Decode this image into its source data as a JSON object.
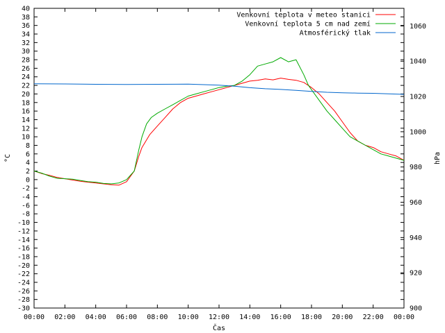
{
  "chart_data": {
    "type": "line",
    "xlabel": "Čas",
    "ylabel": "°C",
    "y2label": "hPa",
    "xlim": [
      0,
      24
    ],
    "ylim": [
      -30,
      40
    ],
    "y2lim": [
      900,
      1070
    ],
    "x_ticks": [
      "00:00",
      "02:00",
      "04:00",
      "06:00",
      "08:00",
      "10:00",
      "12:00",
      "14:00",
      "16:00",
      "18:00",
      "20:00",
      "22:00",
      "00:00"
    ],
    "y_ticks": [
      40,
      38,
      36,
      34,
      32,
      30,
      28,
      26,
      24,
      22,
      20,
      18,
      16,
      14,
      12,
      10,
      8,
      6,
      4,
      2,
      0,
      -2,
      -4,
      -6,
      -8,
      -10,
      -12,
      -14,
      -16,
      -18,
      -20,
      -22,
      -24,
      -26,
      -28,
      -30
    ],
    "y2_ticks": [
      1060,
      1040,
      1020,
      1000,
      980,
      960,
      940,
      920,
      900
    ],
    "legend_position": "top-right",
    "grid": false,
    "series": [
      {
        "name": "Venkovní teplota v meteo stanici",
        "color": "#ff0000",
        "axis": "left",
        "x": [
          0,
          0.5,
          1,
          1.5,
          2,
          2.5,
          3,
          3.5,
          4,
          4.5,
          5,
          5.5,
          6,
          6.5,
          6.8,
          7,
          7.5,
          8,
          8.5,
          9,
          9.5,
          10,
          10.5,
          11,
          11.5,
          12,
          12.5,
          13,
          13.5,
          14,
          14.5,
          15,
          15.5,
          16,
          16.5,
          17,
          17.5,
          18,
          18.5,
          19,
          19.5,
          20,
          20.5,
          21,
          21.5,
          22,
          22.5,
          23,
          23.5,
          24
        ],
        "values": [
          2,
          1.4,
          1,
          0.5,
          0.2,
          -0.1,
          -0.4,
          -0.6,
          -0.8,
          -1,
          -1.2,
          -1.3,
          -0.5,
          2,
          5.5,
          7.5,
          10.5,
          12.5,
          14.5,
          16.5,
          18,
          19,
          19.5,
          20,
          20.5,
          21,
          21.5,
          22,
          22.5,
          23,
          23.2,
          23.5,
          23.3,
          23.7,
          23.4,
          23.2,
          22.7,
          21.5,
          20,
          18,
          16,
          13.5,
          11,
          9,
          8,
          7.5,
          6.5,
          6,
          5.5,
          4.5
        ]
      },
      {
        "name": "Venkovní teplota 5 cm nad zemí",
        "color": "#00aa00",
        "axis": "left",
        "x": [
          0,
          0.5,
          1,
          1.5,
          2,
          2.5,
          3,
          3.5,
          4,
          4.5,
          5,
          5.5,
          6,
          6.5,
          6.8,
          7,
          7.3,
          7.6,
          8,
          8.5,
          9,
          9.5,
          10,
          10.5,
          11,
          11.5,
          12,
          12.5,
          13,
          13.5,
          14,
          14.5,
          15,
          15.5,
          16,
          16.5,
          17,
          17.5,
          17.8,
          18,
          18.5,
          19,
          19.5,
          20,
          20.5,
          21,
          21.5,
          22,
          22.5,
          23,
          23.5,
          24
        ],
        "values": [
          2,
          1.5,
          0.8,
          0.3,
          0.2,
          0.1,
          -0.2,
          -0.5,
          -0.6,
          -0.9,
          -1,
          -0.8,
          0,
          2,
          7,
          10,
          13,
          14.5,
          15.5,
          16.5,
          17.5,
          18.5,
          19.5,
          20,
          20.5,
          21,
          21.5,
          21.8,
          22,
          23,
          24.5,
          26.5,
          27,
          27.5,
          28.5,
          27.5,
          28,
          24.5,
          22,
          21,
          18.5,
          16,
          14,
          12,
          10,
          9,
          8,
          7,
          6,
          5.5,
          5,
          4.5
        ]
      },
      {
        "name": "Atmosférický tlak",
        "color": "#0066cc",
        "axis": "right",
        "x": [
          0,
          2,
          4,
          6,
          8,
          10,
          12,
          13,
          14,
          15,
          16,
          17,
          18,
          19,
          20,
          21,
          22,
          23,
          24
        ],
        "values": [
          1027.2,
          1027.1,
          1026.9,
          1026.8,
          1026.9,
          1027,
          1026.4,
          1025.8,
          1025,
          1024.4,
          1024,
          1023.5,
          1022.9,
          1022.4,
          1022.1,
          1021.9,
          1021.8,
          1021.5,
          1021.2
        ]
      }
    ]
  }
}
